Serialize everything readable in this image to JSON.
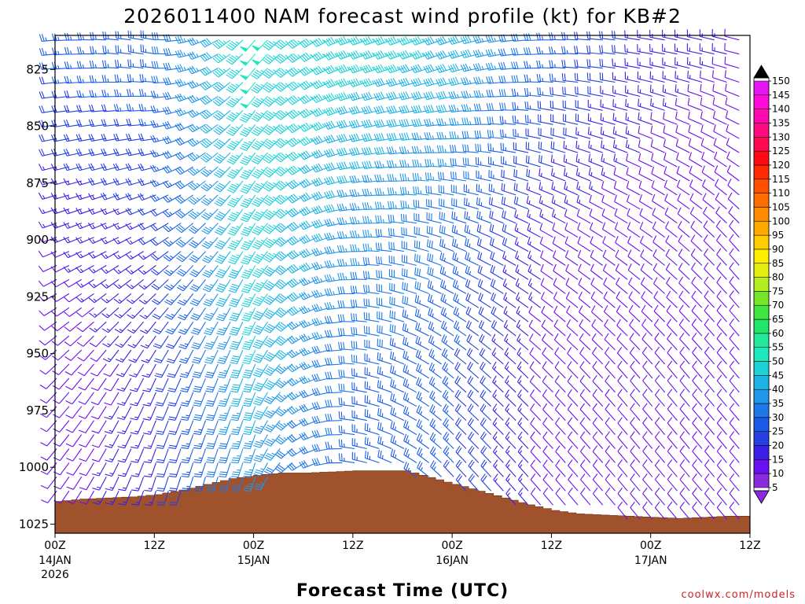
{
  "title": "2026011400 NAM forecast wind profile (kt) for KB#2",
  "xlabel": "Forecast Time (UTC)",
  "watermark": "coolwx.com/models",
  "colors": {
    "terrain": "#a0522d",
    "terrain_edge": "#6b2f12"
  },
  "colorbar": {
    "labels": [
      "5",
      "10",
      "15",
      "20",
      "25",
      "30",
      "35",
      "40",
      "45",
      "50",
      "55",
      "60",
      "65",
      "70",
      "75",
      "80",
      "85",
      "90",
      "95",
      "100",
      "105",
      "110",
      "115",
      "120",
      "125",
      "130",
      "135",
      "140",
      "145",
      "150"
    ],
    "colors": [
      "#8a2be2",
      "#6a0ff0",
      "#3d1ee6",
      "#2440e0",
      "#1a5ce8",
      "#1f78e8",
      "#2196e8",
      "#1cb4e6",
      "#1cd2d6",
      "#1ee8be",
      "#22e89a",
      "#22e66a",
      "#40e640",
      "#78e628",
      "#b4ee1e",
      "#e6ee14",
      "#ffee00",
      "#ffcc00",
      "#ffaa00",
      "#ff8c00",
      "#ff6e00",
      "#ff5000",
      "#ff2a00",
      "#ff0a14",
      "#ff0a50",
      "#ff0a80",
      "#ff0ab0",
      "#ff0ad8",
      "#e614f0",
      "#000000"
    ]
  },
  "chart_data": {
    "type": "wind-profile",
    "title": "2026011400 NAM forecast wind profile (kt) for KB#2",
    "xlabel": "Forecast Time (UTC)",
    "ylabel": "",
    "y_axis": "pressure (hPa), inverted",
    "ylim": [
      1029,
      810
    ],
    "y_ticks": [
      825,
      850,
      875,
      900,
      925,
      950,
      975,
      1000,
      1025
    ],
    "xlim": [
      0,
      84
    ],
    "x_ticks": [
      {
        "hour": 0,
        "label": "00Z",
        "sub": "14JAN",
        "sub2": "2026"
      },
      {
        "hour": 12,
        "label": "12Z",
        "sub": "",
        "sub2": ""
      },
      {
        "hour": 24,
        "label": "00Z",
        "sub": "15JAN",
        "sub2": ""
      },
      {
        "hour": 36,
        "label": "12Z",
        "sub": "",
        "sub2": ""
      },
      {
        "hour": 48,
        "label": "00Z",
        "sub": "16JAN",
        "sub2": ""
      },
      {
        "hour": 60,
        "label": "12Z",
        "sub": "",
        "sub2": ""
      },
      {
        "hour": 72,
        "label": "00Z",
        "sub": "17JAN",
        "sub2": ""
      },
      {
        "hour": 84,
        "label": "12Z",
        "sub": "",
        "sub2": ""
      }
    ],
    "surface_pressure": {
      "hours": [
        0,
        3,
        6,
        9,
        12,
        15,
        18,
        21,
        24,
        27,
        30,
        33,
        36,
        39,
        42,
        45,
        48,
        51,
        54,
        57,
        60,
        63,
        66,
        69,
        72,
        75,
        78,
        81,
        84
      ],
      "hpa": [
        1015.0,
        1014.0,
        1013.5,
        1013.0,
        1012.0,
        1010.0,
        1007.5,
        1005.0,
        1003.5,
        1002.5,
        1002.5,
        1002.0,
        1001.5,
        1001.5,
        1001.5,
        1004.5,
        1007.5,
        1010.5,
        1013.5,
        1016.5,
        1019.0,
        1020.5,
        1021.0,
        1021.5,
        1022.0,
        1022.5,
        1022.0,
        1021.5,
        1021.5
      ]
    },
    "wind_barbs": {
      "units": "kt",
      "keyframes": [
        {
          "hour": 0,
          "speed": {
            "820": 24,
            "900": 12,
            "960": 9,
            "1025": 8
          },
          "dir": {
            "820": 265,
            "900": 250,
            "960": 225,
            "1025": 215
          }
        },
        {
          "hour": 12,
          "speed": {
            "820": 26,
            "900": 17,
            "960": 14,
            "1025": 18
          },
          "dir": {
            "820": 280,
            "900": 240,
            "960": 205,
            "1025": 195
          }
        },
        {
          "hour": 24,
          "speed": {
            "820": 48,
            "900": 46,
            "960": 42,
            "1025": 30
          },
          "dir": {
            "820": 220,
            "900": 210,
            "960": 200,
            "1025": 195
          }
        },
        {
          "hour": 36,
          "speed": {
            "820": 45,
            "900": 35,
            "960": 28,
            "1025": 24
          },
          "dir": {
            "820": 250,
            "900": 265,
            "960": 275,
            "1025": 280
          }
        },
        {
          "hour": 48,
          "speed": {
            "820": 42,
            "900": 28,
            "960": 24,
            "1025": 22
          },
          "dir": {
            "820": 250,
            "900": 290,
            "960": 310,
            "1025": 320
          }
        },
        {
          "hour": 60,
          "speed": {
            "820": 26,
            "900": 12,
            "960": 10,
            "1025": 10
          },
          "dir": {
            "820": 270,
            "900": 300,
            "960": 315,
            "1025": 320
          }
        },
        {
          "hour": 72,
          "speed": {
            "820": 15,
            "900": 9,
            "960": 8,
            "1025": 8
          },
          "dir": {
            "820": 280,
            "900": 305,
            "960": 320,
            "1025": 320
          }
        },
        {
          "hour": 84,
          "speed": {
            "820": 12,
            "900": 8,
            "960": 8,
            "1025": 8
          },
          "dir": {
            "820": 285,
            "900": 320,
            "960": 320,
            "1025": 320
          }
        }
      ]
    }
  }
}
